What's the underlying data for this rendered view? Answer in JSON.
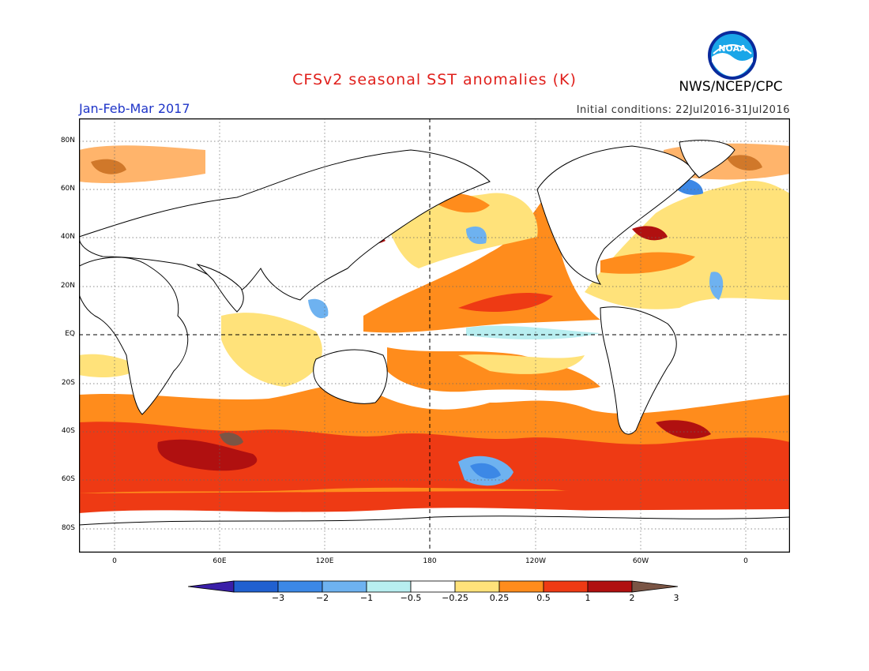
{
  "title": "CFSv2 seasonal SST anomalies (K)",
  "agency": "NWS/NCEP/CPC",
  "logo_text": "NOAA",
  "period": "Jan-Feb-Mar 2017",
  "initial_conditions": "Initial conditions: 22Jul2016-31Jul2016",
  "lat_labels": [
    "80N",
    "60N",
    "40N",
    "20N",
    "EQ",
    "20S",
    "40S",
    "60S",
    "80S"
  ],
  "lon_labels": [
    "0",
    "60E",
    "120E",
    "180",
    "120W",
    "60W",
    "0"
  ],
  "colorbar": {
    "labels": [
      "-3",
      "-2",
      "-1",
      "-0.5",
      "-0.25",
      "0.25",
      "0.5",
      "1",
      "2",
      "3"
    ],
    "colors": [
      "#3a1fa8",
      "#2060d0",
      "#3c88e6",
      "#6eb2f0",
      "#b8eef0",
      "#ffffff",
      "#ffe27a",
      "#ff8c1c",
      "#ee3a14",
      "#b01010",
      "#7a5545"
    ]
  },
  "anomaly_colors": {
    "cold_strong": "#2060d0",
    "cold": "#6eb2f0",
    "cold_weak": "#b8eef0",
    "warm_weak": "#ffe27a",
    "warm": "#ff8c1c",
    "warm_strong": "#ee3a14",
    "hot": "#b01010",
    "extreme": "#7a5545"
  }
}
